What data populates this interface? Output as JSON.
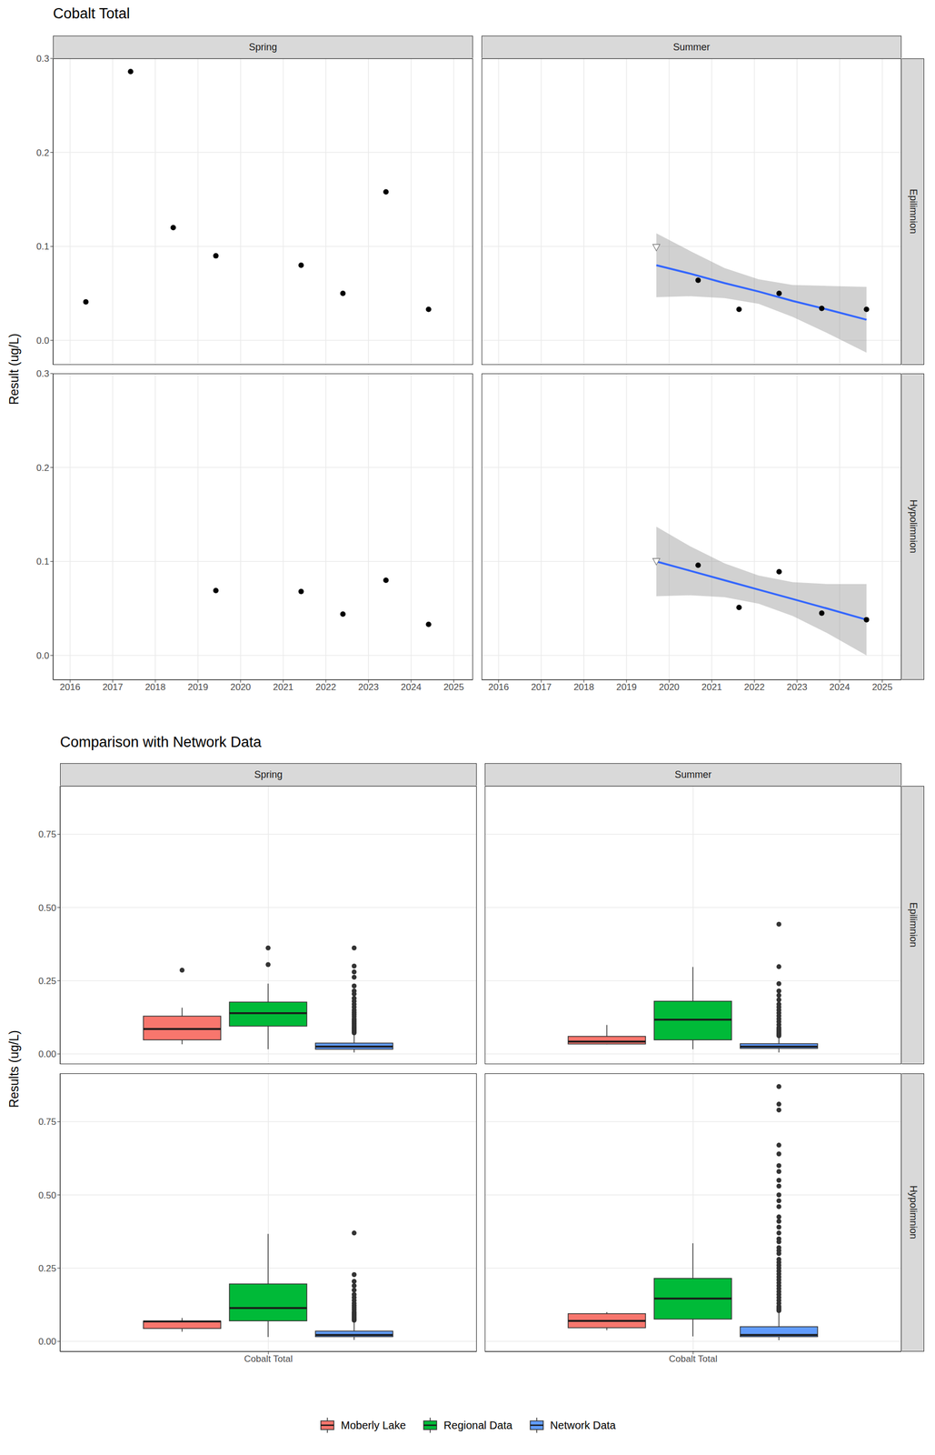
{
  "chart_data": [
    {
      "type": "scatter",
      "title": "Cobalt Total",
      "y_label": "Result (ug/L)",
      "columns": [
        "Spring",
        "Summer"
      ],
      "rows": [
        "Epilimnion",
        "Hypolimnion"
      ],
      "xlim": [
        2015.6,
        2025.45
      ],
      "xticks": [
        2016,
        2017,
        2018,
        2019,
        2020,
        2021,
        2022,
        2023,
        2024,
        2025
      ],
      "ylim": [
        -0.026,
        0.3
      ],
      "yticks": [
        {
          "value": 0,
          "label": "0.0"
        },
        0.1,
        0.2,
        0.3
      ],
      "grid": true,
      "panels": [
        {
          "column": "Spring",
          "row": "Epilimnion",
          "series": [
            {
              "type": "scatter",
              "marker": "circle",
              "color": "#000000",
              "x": [
                2016.37,
                2017.42,
                2018.42,
                2019.42,
                2021.42,
                2022.4,
                2023.41,
                2024.41
              ],
              "values": [
                0.041,
                0.286,
                0.12,
                0.09,
                0.08,
                0.05,
                0.158,
                0.033
              ]
            }
          ]
        },
        {
          "column": "Summer",
          "row": "Epilimnion",
          "series": [
            {
              "type": "line",
              "color": "#3366FF",
              "x": [
                2019.7,
                2020.5,
                2021.3,
                2022.1,
                2022.9,
                2023.7,
                2024.63
              ],
              "values": [
                0.08,
                0.071,
                0.061,
                0.052,
                0.042,
                0.033,
                0.022
              ],
              "lower": [
                0.046,
                0.047,
                0.045,
                0.039,
                0.025,
                0.008,
                -0.013
              ],
              "upper": [
                0.114,
                0.095,
                0.077,
                0.065,
                0.059,
                0.058,
                0.057
              ]
            },
            {
              "type": "scatter",
              "marker": "triangle-open",
              "color": "#7f7f7f",
              "x": [
                2019.7
              ],
              "values": [
                0.099
              ]
            },
            {
              "type": "scatter",
              "marker": "circle",
              "color": "#000000",
              "x": [
                2020.68,
                2021.64,
                2022.58,
                2023.58,
                2024.63
              ],
              "values": [
                0.064,
                0.033,
                0.05,
                0.034,
                0.033
              ]
            }
          ]
        },
        {
          "column": "Spring",
          "row": "Hypolimnion",
          "series": [
            {
              "type": "scatter",
              "marker": "circle",
              "color": "#000000",
              "x": [
                2019.42,
                2021.42,
                2022.4,
                2023.41,
                2024.41
              ],
              "values": [
                0.069,
                0.068,
                0.044,
                0.08,
                0.033
              ]
            }
          ]
        },
        {
          "column": "Summer",
          "row": "Hypolimnion",
          "series": [
            {
              "type": "line",
              "color": "#3366FF",
              "x": [
                2019.7,
                2020.5,
                2021.3,
                2022.1,
                2022.9,
                2023.7,
                2024.63
              ],
              "values": [
                0.1,
                0.09,
                0.08,
                0.07,
                0.06,
                0.05,
                0.038
              ],
              "lower": [
                0.063,
                0.064,
                0.062,
                0.055,
                0.042,
                0.024,
                0.0
              ],
              "upper": [
                0.137,
                0.116,
                0.098,
                0.085,
                0.078,
                0.076,
                0.076
              ]
            },
            {
              "type": "scatter",
              "marker": "triangle-open",
              "color": "#7f7f7f",
              "x": [
                2019.7
              ],
              "values": [
                0.1
              ]
            },
            {
              "type": "scatter",
              "marker": "circle",
              "color": "#000000",
              "x": [
                2020.68,
                2021.64,
                2022.58,
                2023.58,
                2024.63
              ],
              "values": [
                0.096,
                0.051,
                0.089,
                0.045,
                0.038
              ]
            }
          ]
        }
      ]
    },
    {
      "type": "boxplot",
      "title": "Comparison with Network Data",
      "y_label": "Results (ug/L)",
      "columns": [
        "Spring",
        "Summer"
      ],
      "rows": [
        "Epilimnion",
        "Hypolimnion"
      ],
      "categories": [
        "Cobalt Total"
      ],
      "ylim": [
        -0.035,
        0.915
      ],
      "yticks": [
        {
          "value": 0,
          "label": "0.00"
        },
        0.25,
        {
          "value": 0.5,
          "label": "0.50"
        },
        0.75
      ],
      "grid": true,
      "legend": "bottom",
      "series": [
        {
          "name": "Moberly Lake",
          "color": "#F8766D"
        },
        {
          "name": "Regional Data",
          "color": "#00BA38"
        },
        {
          "name": "Network Data",
          "color": "#619CFF"
        }
      ],
      "panels": [
        {
          "column": "Spring",
          "row": "Epilimnion",
          "boxes": [
            {
              "min": 0.033,
              "q1": 0.048,
              "median": 0.085,
              "q3": 0.129,
              "max": 0.158,
              "outliers": [
                0.286
              ]
            },
            {
              "min": 0.016,
              "q1": 0.095,
              "median": 0.139,
              "q3": 0.177,
              "max": 0.24,
              "outliers": [
                0.305,
                0.362
              ]
            },
            {
              "min": 0.005,
              "q1": 0.016,
              "median": 0.025,
              "q3": 0.037,
              "max": 0.07,
              "outliers": [
                0.072,
                0.075,
                0.078,
                0.082,
                0.086,
                0.09,
                0.095,
                0.1,
                0.105,
                0.11,
                0.115,
                0.12,
                0.128,
                0.135,
                0.142,
                0.15,
                0.16,
                0.17,
                0.18,
                0.19,
                0.205,
                0.215,
                0.232,
                0.262,
                0.28,
                0.3,
                0.362
              ]
            }
          ]
        },
        {
          "column": "Summer",
          "row": "Epilimnion",
          "boxes": [
            {
              "min": 0.033,
              "q1": 0.034,
              "median": 0.042,
              "q3": 0.06,
              "max": 0.099,
              "outliers": []
            },
            {
              "min": 0.016,
              "q1": 0.048,
              "median": 0.117,
              "q3": 0.18,
              "max": 0.297,
              "outliers": []
            },
            {
              "min": 0.005,
              "q1": 0.019,
              "median": 0.025,
              "q3": 0.035,
              "max": 0.06,
              "outliers": [
                0.062,
                0.066,
                0.07,
                0.075,
                0.08,
                0.085,
                0.09,
                0.1,
                0.11,
                0.12,
                0.13,
                0.14,
                0.15,
                0.16,
                0.17,
                0.185,
                0.2,
                0.215,
                0.24,
                0.298,
                0.443
              ]
            }
          ]
        },
        {
          "column": "Spring",
          "row": "Hypolimnion",
          "boxes": [
            {
              "min": 0.033,
              "q1": 0.044,
              "median": 0.068,
              "q3": 0.069,
              "max": 0.08,
              "outliers": []
            },
            {
              "min": 0.015,
              "q1": 0.07,
              "median": 0.114,
              "q3": 0.196,
              "max": 0.367,
              "outliers": []
            },
            {
              "min": 0.005,
              "q1": 0.016,
              "median": 0.022,
              "q3": 0.035,
              "max": 0.07,
              "outliers": [
                0.072,
                0.076,
                0.08,
                0.085,
                0.09,
                0.095,
                0.1,
                0.108,
                0.115,
                0.122,
                0.13,
                0.14,
                0.15,
                0.16,
                0.175,
                0.19,
                0.205,
                0.228,
                0.37
              ]
            }
          ]
        },
        {
          "column": "Summer",
          "row": "Hypolimnion",
          "boxes": [
            {
              "min": 0.038,
              "q1": 0.0465,
              "median": 0.07,
              "q3": 0.0945,
              "max": 0.1,
              "outliers": []
            },
            {
              "min": 0.017,
              "q1": 0.076,
              "median": 0.146,
              "q3": 0.215,
              "max": 0.335,
              "outliers": []
            },
            {
              "min": 0.004,
              "q1": 0.016,
              "median": 0.022,
              "q3": 0.05,
              "max": 0.1,
              "outliers": [
                0.105,
                0.11,
                0.115,
                0.12,
                0.13,
                0.14,
                0.15,
                0.16,
                0.17,
                0.18,
                0.19,
                0.2,
                0.21,
                0.22,
                0.23,
                0.24,
                0.25,
                0.26,
                0.27,
                0.28,
                0.3,
                0.31,
                0.32,
                0.34,
                0.35,
                0.37,
                0.39,
                0.41,
                0.425,
                0.46,
                0.48,
                0.5,
                0.53,
                0.55,
                0.58,
                0.6,
                0.64,
                0.67,
                0.79,
                0.81,
                0.87
              ]
            }
          ]
        }
      ]
    }
  ]
}
